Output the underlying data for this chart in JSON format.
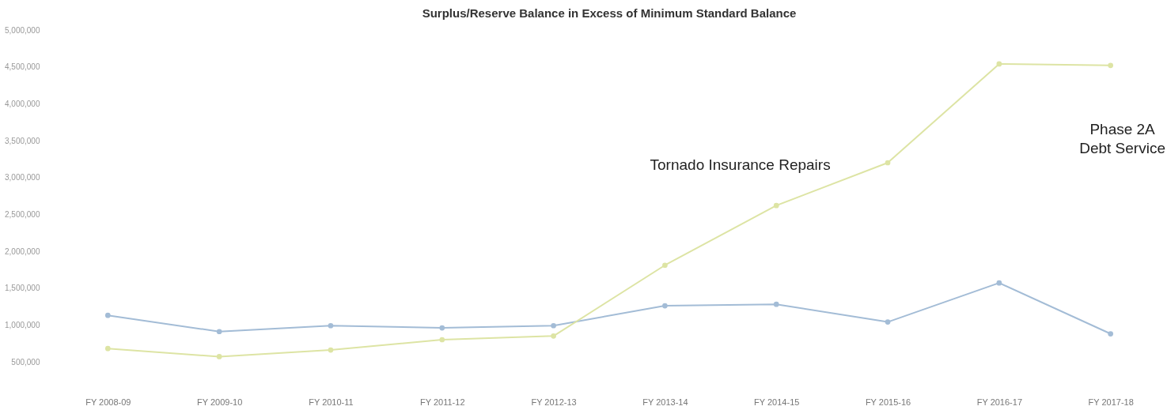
{
  "chart_data": {
    "type": "line",
    "title": "Surplus/Reserve Balance in Excess of Minimum Standard Balance",
    "categories": [
      "FY 2008-09",
      "FY 2009-10",
      "FY 2010-11",
      "FY 2011-12",
      "FY 2012-13",
      "FY 2013-14",
      "FY 2014-15",
      "FY 2015-16",
      "FY 2016-17",
      "FY 2017-18"
    ],
    "series": [
      {
        "color": "#a3bcd6",
        "values": [
          1130000,
          910000,
          990000,
          960000,
          990000,
          1260000,
          1280000,
          1040000,
          1570000,
          880000
        ]
      },
      {
        "color": "#dde4a4",
        "values": [
          680000,
          570000,
          660000,
          800000,
          850000,
          1810000,
          2620000,
          3200000,
          4540000,
          4520000
        ]
      }
    ],
    "ylim": [
      500000,
      5000000
    ],
    "yticks": [
      {
        "value": 500000,
        "label": "500,000"
      },
      {
        "value": 1000000,
        "label": "1,000,000"
      },
      {
        "value": 1500000,
        "label": "1,500,000"
      },
      {
        "value": 2000000,
        "label": "2,000,000"
      },
      {
        "value": 2500000,
        "label": "2,500,000"
      },
      {
        "value": 3000000,
        "label": "3,000,000"
      },
      {
        "value": 3500000,
        "label": "3,500,000"
      },
      {
        "value": 4000000,
        "label": "4,000,000"
      },
      {
        "value": 4500000,
        "label": "4,500,000"
      },
      {
        "value": 5000000,
        "label": "5,000,000"
      }
    ],
    "annotations": [
      "Tornado Insurance Repairs",
      "Phase 2A\nDebt Service"
    ],
    "marker": "circle",
    "line_style": "solid",
    "grid": false,
    "legend": false
  }
}
